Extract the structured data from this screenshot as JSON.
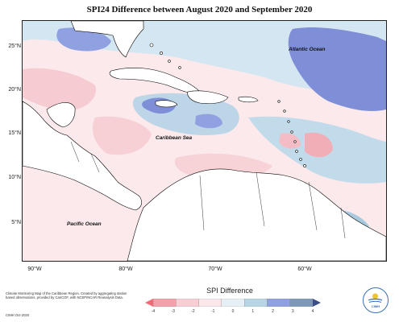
{
  "title": "SPI24 Difference between August 2020 and September 2020",
  "map": {
    "lat_labels": [
      "25°N",
      "20°N",
      "15°N",
      "10°N",
      "5°N"
    ],
    "lon_labels": [
      "90°W",
      "80°W",
      "70°W",
      "60°W"
    ],
    "ocean_labels": {
      "atlantic": "Atlantic Ocean",
      "caribbean": "Caribbean Sea",
      "pacific": "Pacific Ocean"
    },
    "colors": {
      "ocean_base": "#fbe9ec",
      "land": "#ffffff",
      "coast": "#000000",
      "neg_light": "#f7d0d6",
      "neg_mid": "#f2aeb6",
      "pos_light": "#cfe3ef",
      "pos_mid": "#a5c7dc",
      "pos_dark": "#7e8fd8"
    }
  },
  "legend": {
    "title": "SPI Difference",
    "ticks": [
      "-4",
      "-3",
      "-2",
      "-1",
      "0",
      "1",
      "2",
      "3",
      "4"
    ],
    "colors": [
      "#f06a78",
      "#f4a0aa",
      "#f8cdd3",
      "#fbe6e9",
      "#e6f0f5",
      "#b8d5e6",
      "#8fa1e1",
      "#7e99b8",
      "#3b4f86"
    ]
  },
  "credit": {
    "text": "Climate Monitoring Map of the Caribbean Region. Created by aggregating station based observations, provided by CariCOF, with NCEP/NCAR Reanalysis Data.",
    "code": "CIMH Oct-2020"
  },
  "logo": {
    "text": "CIMH"
  }
}
